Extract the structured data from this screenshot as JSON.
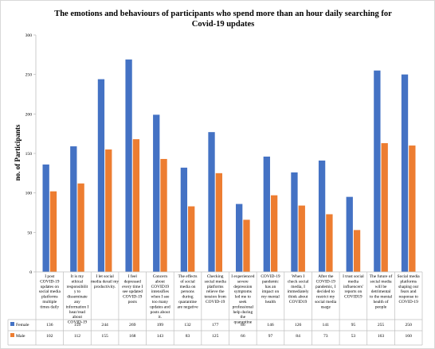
{
  "chart_data": {
    "type": "bar",
    "title_lines": [
      "The emotions and behaviours of participants who spend more than an hour daily searching for",
      "Covid-19 updates"
    ],
    "ylabel": "no. of Participants",
    "ylim": [
      0,
      300
    ],
    "y_ticks": [
      0,
      50,
      100,
      150,
      200,
      250,
      300
    ],
    "grid": false,
    "legend": "data-table",
    "categories": [
      [
        "I post",
        "COVID-19",
        "updates on",
        "social media",
        "platforms",
        "multiple",
        "times daily"
      ],
      [
        "It is my",
        "ethical",
        "responsibilit",
        "y to",
        "disseminate",
        "any",
        "information I",
        "hear/read",
        "about",
        "COVID-19"
      ],
      [
        "I let social",
        "media derail my",
        "productivity."
      ],
      [
        "I feel",
        "depressed",
        "every time I",
        "see updated",
        "COVID-19",
        "posts"
      ],
      [
        "Concern",
        "about",
        "COVID19",
        "intensifies",
        "when I see",
        "too many",
        "updates and",
        "posts about",
        "it."
      ],
      [
        "The effects",
        "of social",
        "media on",
        "persons",
        "during",
        "quarantine",
        "are negative"
      ],
      [
        "Checking",
        "social media",
        "platforms",
        "relieve the",
        "tension from",
        "COVID-19"
      ],
      [
        "I experienced",
        "severe",
        "depression",
        "symptoms",
        "led me to",
        "seek",
        "professional",
        "help during",
        "the",
        "quarantine"
      ],
      [
        "COVID-19",
        "pandemic",
        "has an",
        "impact on",
        "my mental",
        "health"
      ],
      [
        "When I",
        "check  social",
        "media, I",
        "immediately",
        "think about",
        "COVID19"
      ],
      [
        "After the",
        "COVID-19",
        "pandemic, I",
        "decided to",
        "restrict my",
        "social media",
        "usage"
      ],
      [
        "I trust social",
        "media",
        "influencers'",
        "reports on",
        "COVID19"
      ],
      [
        "The future of",
        "social media",
        "will be",
        "detrimental",
        "to the mental",
        "health of",
        "people"
      ],
      [
        "Social media",
        "platforms",
        "shaping our",
        "fears and",
        "response to",
        "COVID-19"
      ]
    ],
    "series": [
      {
        "name": "Female",
        "color": "#4472C4",
        "values": [
          136,
          159,
          244,
          269,
          199,
          132,
          177,
          86,
          146,
          126,
          141,
          95,
          255,
          250
        ]
      },
      {
        "name": "Male",
        "color": "#ED7D31",
        "values": [
          102,
          112,
          155,
          168,
          143,
          83,
          125,
          66,
          97,
          84,
          73,
          53,
          163,
          160
        ]
      }
    ]
  }
}
